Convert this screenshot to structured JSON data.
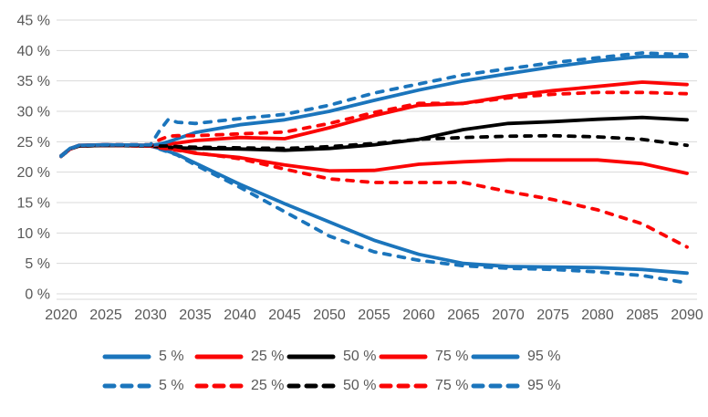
{
  "page": {
    "background": "#FFFFFF",
    "title": ""
  },
  "colors": {
    "blue": "#1B75BC",
    "red": "#FB0505",
    "black": "#000000",
    "axis_text": "#595959",
    "gridline": "#D9D9D9",
    "background": "#FFFFFF"
  },
  "chart_data": {
    "type": "line",
    "title": "",
    "xlabel": "",
    "ylabel": "",
    "grid": "horizontal",
    "legend_position": "bottom",
    "xlim": [
      2020,
      2090
    ],
    "ylim": [
      0,
      45
    ],
    "y_tick_step": 5,
    "y_tick_labels": [
      "0 %",
      "5 %",
      "10 %",
      "15 %",
      "20 %",
      "25 %",
      "30 %",
      "35 %",
      "40 %",
      "45 %"
    ],
    "x_tick_labels": [
      "2020",
      "2025",
      "2030",
      "2035",
      "2040",
      "2045",
      "2050",
      "2055",
      "2060",
      "2065",
      "2070",
      "2075",
      "2080",
      "2085",
      "2090"
    ],
    "x": [
      2020,
      2021,
      2022,
      2025,
      2030,
      2031,
      2032,
      2033,
      2035,
      2040,
      2045,
      2050,
      2055,
      2060,
      2065,
      2070,
      2075,
      2080,
      2085,
      2090
    ],
    "series": [
      {
        "label": "5 %",
        "style": "solid",
        "color": "blue",
        "values": [
          22.7,
          23.9,
          24.3,
          24.5,
          24.3,
          23.9,
          23.4,
          22.9,
          21.5,
          18.0,
          14.8,
          11.8,
          8.8,
          6.5,
          5.0,
          4.5,
          4.4,
          4.3,
          4.0,
          3.4
        ]
      },
      {
        "label": "25 %",
        "style": "solid",
        "color": "red",
        "values": [
          22.6,
          23.8,
          24.3,
          24.4,
          24.3,
          24.1,
          23.9,
          23.7,
          23.1,
          22.4,
          21.2,
          20.2,
          20.3,
          21.3,
          21.7,
          22.0,
          22.0,
          22.0,
          21.4,
          19.8
        ]
      },
      {
        "label": "50 %",
        "style": "solid",
        "color": "black",
        "values": [
          22.6,
          23.8,
          24.3,
          24.4,
          24.3,
          24.2,
          24.1,
          24.0,
          23.9,
          23.8,
          23.6,
          23.9,
          24.5,
          25.4,
          27.0,
          28.0,
          28.3,
          28.7,
          29.0,
          28.6
        ]
      },
      {
        "label": "75 %",
        "style": "solid",
        "color": "red",
        "values": [
          22.6,
          23.8,
          24.4,
          24.5,
          24.4,
          24.5,
          24.6,
          24.8,
          25.2,
          25.7,
          25.5,
          27.3,
          29.3,
          31.0,
          31.3,
          32.5,
          33.4,
          34.1,
          34.8,
          34.4
        ]
      },
      {
        "label": "95 %",
        "style": "solid",
        "color": "blue",
        "values": [
          22.7,
          23.9,
          24.4,
          24.5,
          24.4,
          24.6,
          25.0,
          25.5,
          26.5,
          27.8,
          28.6,
          30.0,
          31.8,
          33.5,
          35.0,
          36.2,
          37.3,
          38.3,
          39.0,
          39.0
        ]
      },
      {
        "label": "5 %",
        "style": "dashed",
        "color": "blue",
        "values": [
          22.7,
          23.9,
          24.3,
          24.5,
          24.3,
          23.8,
          23.3,
          22.8,
          21.2,
          17.5,
          13.5,
          9.5,
          6.9,
          5.5,
          4.6,
          4.2,
          4.0,
          3.6,
          3.0,
          1.8
        ]
      },
      {
        "label": "25 %",
        "style": "dashed",
        "color": "red",
        "values": [
          22.6,
          23.8,
          24.3,
          24.4,
          24.3,
          24.0,
          23.8,
          23.6,
          23.2,
          22.2,
          20.5,
          18.9,
          18.3,
          18.3,
          18.3,
          16.8,
          15.5,
          13.8,
          11.5,
          7.7
        ]
      },
      {
        "label": "50 %",
        "style": "dashed",
        "color": "black",
        "values": [
          22.6,
          23.8,
          24.3,
          24.4,
          24.4,
          24.3,
          24.3,
          24.2,
          24.1,
          24.0,
          23.9,
          24.2,
          24.7,
          25.4,
          25.7,
          25.9,
          26.0,
          25.8,
          25.4,
          24.4
        ]
      },
      {
        "label": "75 %",
        "style": "dashed",
        "color": "red",
        "values": [
          22.6,
          23.8,
          24.4,
          24.5,
          24.5,
          25.3,
          25.9,
          26.0,
          26.0,
          26.3,
          26.6,
          28.0,
          29.8,
          31.3,
          31.3,
          32.2,
          32.8,
          33.1,
          33.1,
          32.9
        ]
      },
      {
        "label": "95 %",
        "style": "dashed",
        "color": "blue",
        "values": [
          22.6,
          23.8,
          24.4,
          24.5,
          24.5,
          26.8,
          28.7,
          28.2,
          28.0,
          28.8,
          29.5,
          31.0,
          33.0,
          34.5,
          36.0,
          37.0,
          38.0,
          38.8,
          39.6,
          39.3
        ]
      }
    ],
    "legend": {
      "rows": [
        {
          "style": "solid",
          "entries": [
            {
              "label": "5 %",
              "color": "blue"
            },
            {
              "label": "25 %",
              "color": "red"
            },
            {
              "label": "50 %",
              "color": "black"
            },
            {
              "label": "75 %",
              "color": "red"
            },
            {
              "label": "95 %",
              "color": "blue"
            }
          ]
        },
        {
          "style": "dashed",
          "entries": [
            {
              "label": "5 %",
              "color": "blue"
            },
            {
              "label": "25 %",
              "color": "red"
            },
            {
              "label": "50 %",
              "color": "black"
            },
            {
              "label": "75 %",
              "color": "red"
            },
            {
              "label": "95 %",
              "color": "blue"
            }
          ]
        }
      ]
    }
  }
}
